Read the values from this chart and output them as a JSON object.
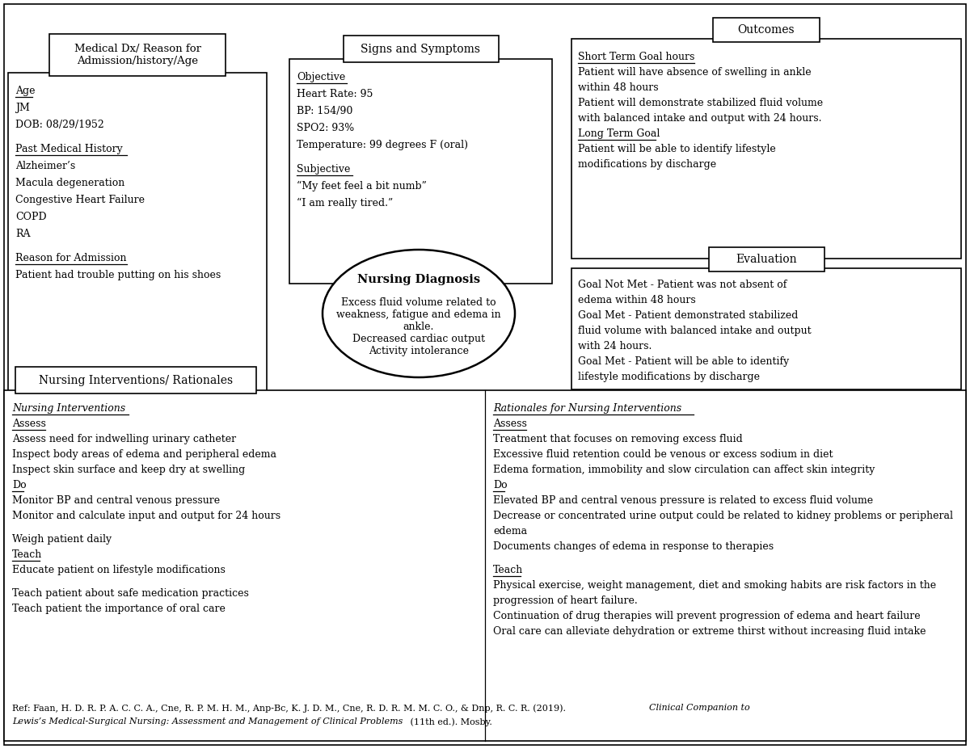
{
  "bg_color": "#ffffff",
  "border_color": "#000000",
  "top_left_header": "Medical Dx/ Reason for\nAdmission/history/Age",
  "top_center_header": "Signs and Symptoms",
  "top_right_header": "Outcomes",
  "bottom_header": "Nursing Interventions/ Rationales",
  "evaluation_header": "Evaluation",
  "left_box_content": [
    [
      "Age",
      true
    ],
    [
      "JM",
      false
    ],
    [
      "DOB: 08/29/1952",
      false
    ],
    [
      "",
      false
    ],
    [
      "Past Medical History",
      true
    ],
    [
      "Alzheimer’s",
      false
    ],
    [
      "Macula degeneration",
      false
    ],
    [
      "Congestive Heart Failure",
      false
    ],
    [
      "COPD",
      false
    ],
    [
      "RA",
      false
    ],
    [
      "",
      false
    ],
    [
      "Reason for Admission",
      true
    ],
    [
      "Patient had trouble putting on his shoes",
      false
    ]
  ],
  "signs_box_content": [
    [
      "Objective",
      true
    ],
    [
      "Heart Rate: 95",
      false
    ],
    [
      "BP: 154/90",
      false
    ],
    [
      "SPO2: 93%",
      false
    ],
    [
      "Temperature: 99 degrees F (oral)",
      false
    ],
    [
      "",
      false
    ],
    [
      "Subjective",
      true
    ],
    [
      "“My feet feel a bit numb”",
      false
    ],
    [
      "“I am really tired.”",
      false
    ]
  ],
  "outcomes_box_content": [
    [
      "Short Term Goal hours",
      true
    ],
    [
      "Patient will have absence of swelling in ankle",
      false
    ],
    [
      "within 48 hours",
      false
    ],
    [
      "Patient will demonstrate stabilized fluid volume",
      false
    ],
    [
      "with balanced intake and output with 24 hours.",
      false
    ],
    [
      "Long Term Goal",
      true
    ],
    [
      "Patient will be able to identify lifestyle",
      false
    ],
    [
      "modifications by discharge",
      false
    ]
  ],
  "evaluation_box_content": [
    [
      "Goal Not Met - Patient was not absent of",
      false
    ],
    [
      "edema within 48 hours",
      false
    ],
    [
      "Goal Met - Patient demonstrated stabilized",
      false
    ],
    [
      "fluid volume with balanced intake and output",
      false
    ],
    [
      "with 24 hours.",
      false
    ],
    [
      "Goal Met - Patient will be able to identify",
      false
    ],
    [
      "lifestyle modifications by discharge",
      false
    ]
  ],
  "nursing_interventions_col1": [
    [
      "Nursing Interventions",
      true,
      true
    ],
    [
      "Assess",
      true,
      false
    ],
    [
      "Assess need for indwelling urinary catheter",
      false,
      false
    ],
    [
      "Inspect body areas of edema and peripheral edema",
      false,
      false
    ],
    [
      "Inspect skin surface and keep dry at swelling",
      false,
      false
    ],
    [
      "Do",
      true,
      false
    ],
    [
      "Monitor BP and central venous pressure",
      false,
      false
    ],
    [
      "Monitor and calculate input and output for 24 hours",
      false,
      false
    ],
    [
      "",
      false,
      false
    ],
    [
      "Weigh patient daily",
      false,
      false
    ],
    [
      "Teach",
      true,
      false
    ],
    [
      "Educate patient on lifestyle modifications",
      false,
      false
    ],
    [
      "",
      false,
      false
    ],
    [
      "Teach patient about safe medication practices",
      false,
      false
    ],
    [
      "Teach patient the importance of oral care",
      false,
      false
    ]
  ],
  "nursing_interventions_col2": [
    [
      "Rationales for Nursing Interventions",
      true,
      true
    ],
    [
      "Assess",
      true,
      false
    ],
    [
      "Treatment that focuses on removing excess fluid",
      false,
      false
    ],
    [
      "Excessive fluid retention could be venous or excess sodium in diet",
      false,
      false
    ],
    [
      "Edema formation, immobility and slow circulation can affect skin integrity",
      false,
      false
    ],
    [
      "Do",
      true,
      false
    ],
    [
      "Elevated BP and central venous pressure is related to excess fluid volume",
      false,
      false
    ],
    [
      "Decrease or concentrated urine output could be related to kidney problems or peripheral",
      false,
      false
    ],
    [
      "edema",
      false,
      false
    ],
    [
      "Documents changes of edema in response to therapies",
      false,
      false
    ],
    [
      "",
      false,
      false
    ],
    [
      "Teach",
      true,
      false
    ],
    [
      "Physical exercise, weight management, diet and smoking habits are risk factors in the",
      false,
      false
    ],
    [
      "progression of heart failure.",
      false,
      false
    ],
    [
      "Continuation of drug therapies will prevent progression of edema and heart failure",
      false,
      false
    ],
    [
      "Oral care can alleviate dehydration or extreme thirst without increasing fluid intake",
      false,
      false
    ]
  ],
  "reference_normal": "Ref: Faan, H. D. R. P. A. C. C. A., Cne, R. P. M. H. M., Anp-Bc, K. J. D. M., Cne, R. D. R. M. M. C. O., & Dnp, R. C. R. (2019). ",
  "reference_italic": "Clinical Companion to",
  "reference_line2_italic": "Lewis’s Medical-Surgical Nursing: Assessment and Management of Clinical Problems",
  "reference_line2_normal": " (11th ed.). Mosby."
}
